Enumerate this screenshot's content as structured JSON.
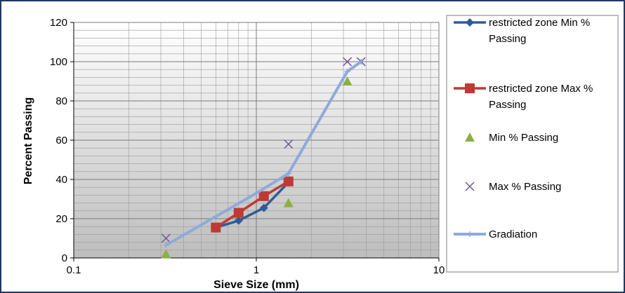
{
  "chart_data": {
    "type": "scatter",
    "title": "",
    "xlabel": "Sieve Size (mm)",
    "ylabel": "Percent Passing",
    "x_scale": "log",
    "xlim": [
      0.1,
      10
    ],
    "ylim": [
      0,
      120
    ],
    "x_tick_labels": [
      "0.1",
      "1",
      "10"
    ],
    "y_ticks": [
      0,
      20,
      40,
      60,
      80,
      100,
      120
    ],
    "y_tick_labels": [
      "0",
      "20",
      "40",
      "60",
      "80",
      "100",
      "120"
    ],
    "grid": true,
    "legend_position": "right",
    "series": [
      {
        "name": "restricted zone Min % Passing",
        "color": "#2e5c99",
        "marker": "diamond",
        "line": true,
        "points": [
          [
            0.6,
            15.5
          ],
          [
            0.8,
            19
          ],
          [
            1.1,
            25.5
          ],
          [
            1.5,
            38.5
          ]
        ]
      },
      {
        "name": "restricted zone Max % Passing",
        "color": "#be3a34",
        "marker": "square",
        "line": true,
        "points": [
          [
            0.6,
            15.5
          ],
          [
            0.8,
            23
          ],
          [
            1.1,
            31.5
          ],
          [
            1.5,
            39
          ]
        ]
      },
      {
        "name": "Min % Passing",
        "color": "#8eaf45",
        "marker": "triangle",
        "line": false,
        "points": [
          [
            0.32,
            2
          ],
          [
            1.5,
            28
          ],
          [
            3.15,
            90
          ]
        ]
      },
      {
        "name": "Max % Passing",
        "color": "#6e5694",
        "marker": "x",
        "line": false,
        "points": [
          [
            0.32,
            10
          ],
          [
            1.5,
            58
          ],
          [
            3.15,
            100
          ],
          [
            3.75,
            100
          ]
        ]
      },
      {
        "name": "Gradiation",
        "color": "#8eaadb",
        "marker": "plus",
        "line": true,
        "points": [
          [
            0.32,
            6.5
          ],
          [
            1.0,
            33
          ],
          [
            1.5,
            43
          ],
          [
            3.15,
            95
          ],
          [
            3.75,
            100
          ]
        ]
      }
    ]
  }
}
